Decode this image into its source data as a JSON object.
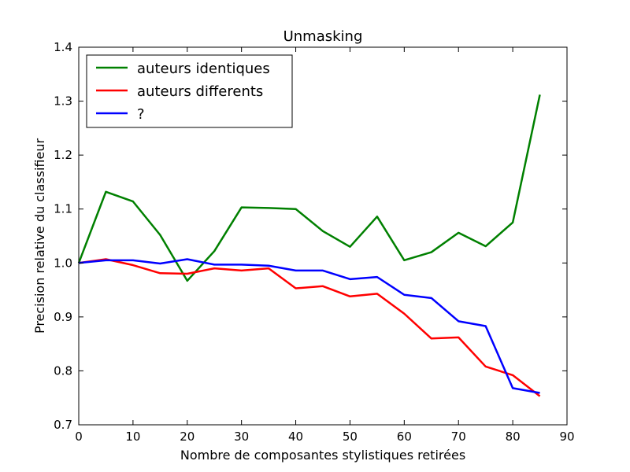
{
  "chart_data": {
    "type": "line",
    "title": "Unmasking",
    "xlabel": "Nombre de composantes stylistiques retirées",
    "ylabel": "Precision relative du classifieur",
    "xlim": [
      0,
      90
    ],
    "ylim": [
      0.7,
      1.4
    ],
    "xticks": [
      0,
      10,
      20,
      30,
      40,
      50,
      60,
      70,
      80,
      90
    ],
    "yticks": [
      0.7,
      0.8,
      0.9,
      1.0,
      1.1,
      1.2,
      1.3,
      1.4
    ],
    "xtick_labels": [
      "0",
      "10",
      "20",
      "30",
      "40",
      "50",
      "60",
      "70",
      "80",
      "90"
    ],
    "ytick_labels": [
      "0.7",
      "0.8",
      "0.9",
      "1.0",
      "1.1",
      "1.2",
      "1.3",
      "1.4"
    ],
    "grid": false,
    "legend_position": "top-left",
    "x": [
      0,
      5,
      10,
      15,
      20,
      25,
      30,
      35,
      40,
      45,
      50,
      55,
      60,
      65,
      70,
      75,
      80,
      85
    ],
    "series": [
      {
        "name": "auteurs identiques",
        "color": "#008000",
        "values": [
          1.0,
          1.132,
          1.114,
          1.052,
          0.967,
          1.022,
          1.103,
          1.102,
          1.1,
          1.059,
          1.03,
          1.086,
          1.005,
          1.02,
          1.056,
          1.031,
          1.075,
          1.312
        ]
      },
      {
        "name": "auteurs differents",
        "color": "#ff0000",
        "values": [
          1.0,
          1.007,
          0.996,
          0.981,
          0.98,
          0.99,
          0.986,
          0.99,
          0.953,
          0.957,
          0.938,
          0.943,
          0.906,
          0.86,
          0.862,
          0.808,
          0.792,
          0.753
        ]
      },
      {
        "name": "?",
        "color": "#0000ff",
        "values": [
          1.0,
          1.005,
          1.005,
          0.999,
          1.007,
          0.997,
          0.997,
          0.995,
          0.986,
          0.986,
          0.97,
          0.974,
          0.941,
          0.935,
          0.892,
          0.883,
          0.768,
          0.759
        ]
      }
    ]
  }
}
